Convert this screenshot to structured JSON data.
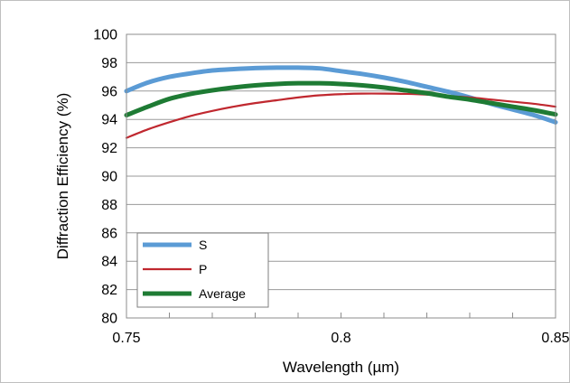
{
  "chart_data": {
    "type": "line",
    "xlabel": "Wavelength (µm)",
    "ylabel": "Diffraction Efficiency (%)",
    "xlim": [
      0.75,
      0.85
    ],
    "ylim": [
      80,
      100
    ],
    "xticks": [
      0.75,
      0.8,
      0.85
    ],
    "xtick_labels": [
      "0.75",
      "0.8",
      "0.85"
    ],
    "yticks": [
      80,
      82,
      84,
      86,
      88,
      90,
      92,
      94,
      96,
      98,
      100
    ],
    "ytick_labels": [
      "80",
      "82",
      "84",
      "86",
      "88",
      "90",
      "92",
      "94",
      "96",
      "98",
      "100"
    ],
    "grid": "horizontal",
    "legend_position": "bottom-left",
    "series": [
      {
        "name": "S",
        "color": "#5b9bd5",
        "x": [
          0.75,
          0.755,
          0.76,
          0.765,
          0.77,
          0.775,
          0.78,
          0.785,
          0.79,
          0.795,
          0.8,
          0.805,
          0.81,
          0.815,
          0.82,
          0.825,
          0.83,
          0.835,
          0.84,
          0.845,
          0.85
        ],
        "y": [
          96.0,
          96.6,
          97.0,
          97.25,
          97.45,
          97.55,
          97.62,
          97.65,
          97.65,
          97.6,
          97.4,
          97.2,
          96.95,
          96.65,
          96.3,
          95.95,
          95.55,
          95.1,
          94.7,
          94.3,
          93.8
        ]
      },
      {
        "name": "P",
        "color": "#c0282f",
        "x": [
          0.75,
          0.755,
          0.76,
          0.765,
          0.77,
          0.775,
          0.78,
          0.785,
          0.79,
          0.795,
          0.8,
          0.805,
          0.81,
          0.815,
          0.82,
          0.825,
          0.83,
          0.835,
          0.84,
          0.845,
          0.85
        ],
        "y": [
          92.7,
          93.3,
          93.8,
          94.25,
          94.6,
          94.9,
          95.15,
          95.35,
          95.55,
          95.7,
          95.78,
          95.82,
          95.82,
          95.8,
          95.75,
          95.65,
          95.55,
          95.4,
          95.25,
          95.1,
          94.9
        ]
      },
      {
        "name": "Average",
        "color": "#1e7b34",
        "x": [
          0.75,
          0.755,
          0.76,
          0.765,
          0.77,
          0.775,
          0.78,
          0.785,
          0.79,
          0.795,
          0.8,
          0.805,
          0.81,
          0.815,
          0.82,
          0.825,
          0.83,
          0.835,
          0.84,
          0.845,
          0.85
        ],
        "y": [
          94.3,
          94.9,
          95.45,
          95.8,
          96.05,
          96.25,
          96.4,
          96.5,
          96.55,
          96.55,
          96.5,
          96.4,
          96.25,
          96.05,
          95.85,
          95.6,
          95.4,
          95.15,
          94.9,
          94.65,
          94.35
        ]
      }
    ]
  }
}
